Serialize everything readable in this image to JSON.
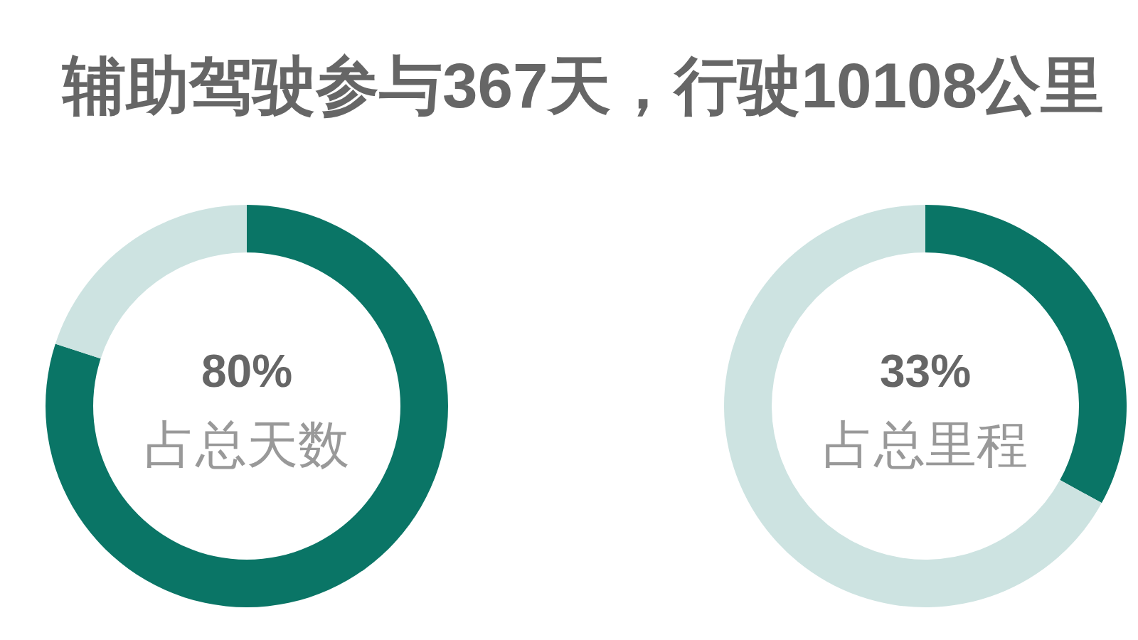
{
  "chart_data": [
    {
      "type": "other",
      "title": "辅助驾驶参与367天，行驶10108公里"
    },
    {
      "type": "donut",
      "categories": [
        null,
        null
      ],
      "values": [
        80,
        20
      ],
      "colors": [
        "#0a7566",
        "#cde3e1"
      ],
      "value_labels": [
        "80%",
        null
      ],
      "annotations": [
        "占总天数"
      ]
    },
    {
      "type": "donut",
      "categories": [
        null,
        null
      ],
      "values": [
        33,
        67
      ],
      "colors": [
        "#0a7566",
        "#cde3e1"
      ],
      "value_labels": [
        "33%",
        null
      ],
      "annotations": [
        "占总里程"
      ]
    }
  ]
}
